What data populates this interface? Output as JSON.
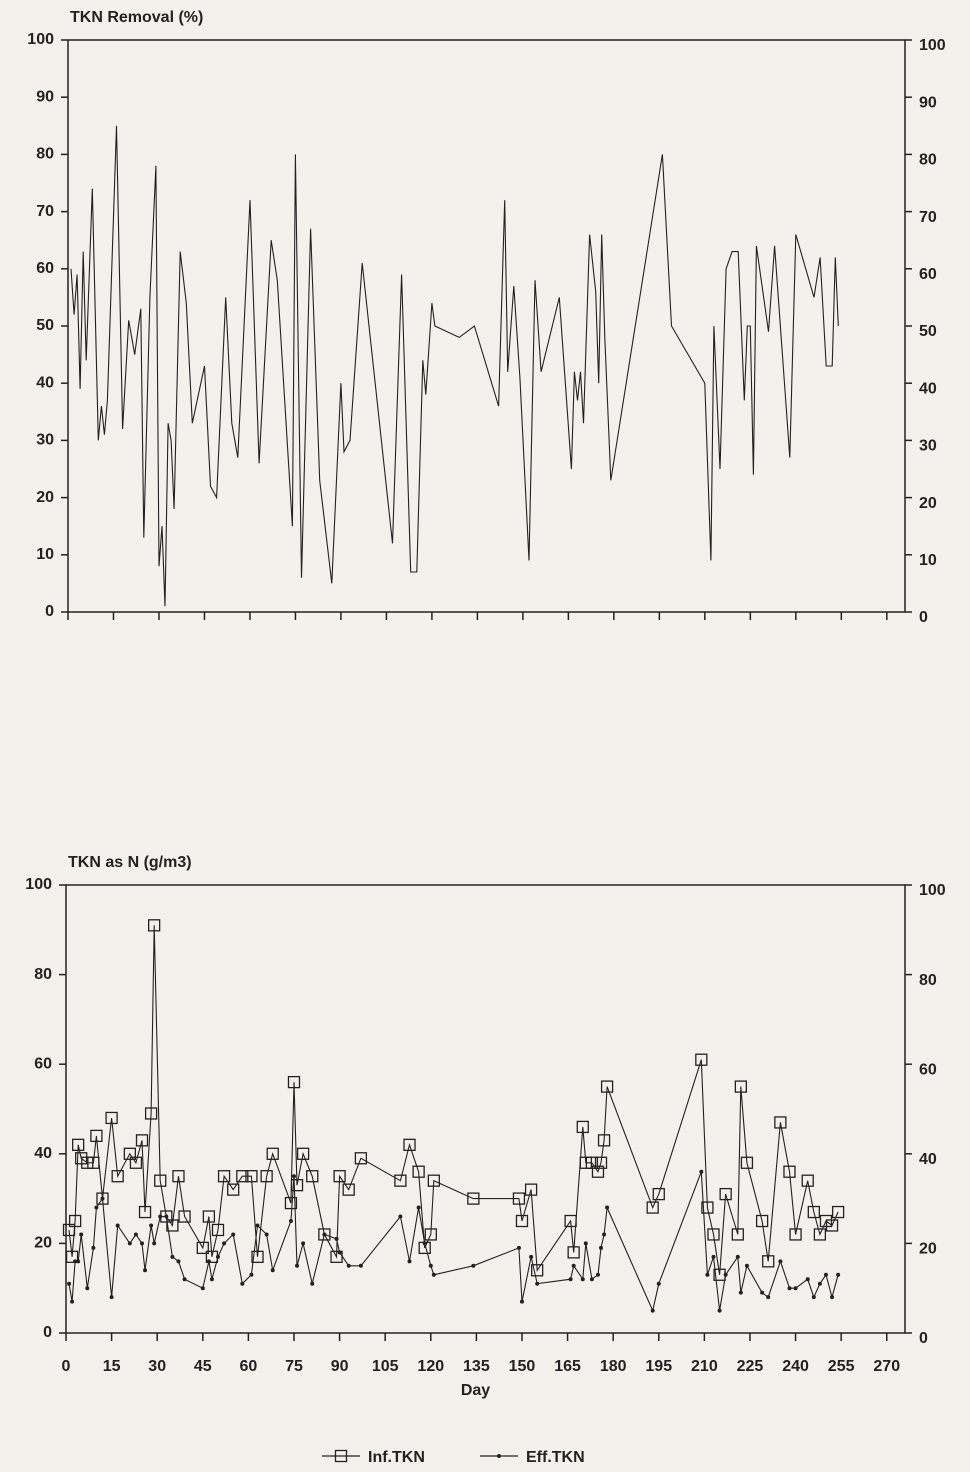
{
  "chart_data": [
    {
      "type": "line",
      "title": "TKN Removal (%)",
      "x": [
        1,
        2,
        3,
        4,
        5,
        6,
        8,
        10,
        11,
        12,
        13,
        16,
        18,
        20,
        22,
        24,
        25,
        27,
        29,
        30,
        31,
        32,
        33,
        34,
        35,
        37,
        39,
        41,
        45,
        47,
        49,
        52,
        54,
        56,
        60,
        63,
        67,
        69,
        74,
        75,
        77,
        80,
        83,
        87,
        90,
        91,
        93,
        97,
        107,
        110,
        113,
        115,
        117,
        118,
        120,
        121,
        129,
        134,
        142,
        144,
        145,
        147,
        149,
        152,
        154,
        156,
        162,
        166,
        167,
        168,
        169,
        170,
        172,
        174,
        175,
        176,
        177,
        179,
        196,
        199,
        210,
        212,
        213,
        215,
        217,
        219,
        221,
        223,
        224,
        225,
        226,
        227,
        231,
        233,
        238,
        240,
        246,
        248,
        250,
        252,
        253,
        254
      ],
      "values": [
        60,
        52,
        59,
        39,
        63,
        44,
        74,
        30,
        36,
        31,
        37,
        85,
        32,
        51,
        45,
        53,
        13,
        55,
        78,
        8,
        15,
        1,
        33,
        30,
        18,
        63,
        54,
        33,
        43,
        22,
        20,
        55,
        33,
        27,
        72,
        26,
        65,
        58,
        15,
        80,
        6,
        67,
        23,
        5,
        40,
        28,
        30,
        61,
        12,
        59,
        7,
        7,
        44,
        38,
        54,
        50,
        48,
        50,
        36,
        72,
        42,
        57,
        41,
        9,
        58,
        42,
        55,
        25,
        42,
        37,
        42,
        33,
        66,
        56,
        40,
        66,
        48,
        23,
        80,
        50,
        40,
        9,
        50,
        25,
        60,
        63,
        63,
        37,
        50,
        50,
        24,
        64,
        49,
        64,
        27,
        66,
        55,
        62,
        43,
        43,
        62,
        50
      ],
      "color": "#222222",
      "xlim": [
        0,
        276
      ],
      "xticks": [
        0,
        15,
        30,
        45,
        60,
        75,
        90,
        105,
        120,
        135,
        150,
        165,
        180,
        195,
        210,
        225,
        240,
        255,
        270
      ],
      "show_xtick_labels": false,
      "ylim": [
        0,
        100
      ],
      "yticks": [
        0,
        10,
        20,
        30,
        40,
        50,
        60,
        70,
        80,
        90,
        100
      ],
      "y2lim": [
        0,
        100
      ],
      "y2ticks": [
        0,
        10,
        20,
        30,
        40,
        50,
        60,
        70,
        80,
        90,
        100
      ]
    },
    {
      "type": "line",
      "title": "TKN as N (g/m3)",
      "xlabel": "Day",
      "x": [
        1,
        2,
        3,
        4,
        5,
        7,
        9,
        10,
        12,
        15,
        17,
        21,
        23,
        25,
        26,
        28,
        29,
        31,
        33,
        35,
        37,
        39,
        45,
        47,
        48,
        50,
        52,
        55,
        58,
        61,
        63,
        66,
        68,
        74,
        75,
        76,
        78,
        81,
        85,
        89,
        90,
        93,
        97,
        110,
        113,
        116,
        118,
        120,
        121,
        134,
        149,
        150,
        153,
        155,
        166,
        167,
        170,
        171,
        173,
        175,
        176,
        177,
        178,
        193,
        195,
        209,
        211,
        213,
        215,
        217,
        221,
        222,
        224,
        229,
        231,
        235,
        238,
        240,
        244,
        246,
        248,
        250,
        252,
        254
      ],
      "series": [
        {
          "name": "Inf.TKN",
          "color": "#222222",
          "marker": "square",
          "values": [
            23,
            17,
            25,
            42,
            39,
            38,
            38,
            44,
            30,
            48,
            35,
            40,
            38,
            43,
            27,
            49,
            91,
            34,
            26,
            24,
            35,
            26,
            19,
            26,
            17,
            23,
            35,
            32,
            35,
            35,
            17,
            35,
            40,
            29,
            56,
            33,
            40,
            35,
            22,
            17,
            35,
            32,
            39,
            34,
            42,
            36,
            19,
            22,
            34,
            30,
            30,
            25,
            32,
            14,
            25,
            18,
            46,
            38,
            38,
            36,
            38,
            43,
            55,
            28,
            31,
            61,
            28,
            22,
            13,
            31,
            22,
            55,
            38,
            25,
            16,
            47,
            36,
            22,
            34,
            27,
            22,
            25,
            24,
            27
          ]
        },
        {
          "name": "Eff.TKN",
          "color": "#222222",
          "marker": "dot",
          "values": [
            11,
            7,
            16,
            16,
            22,
            10,
            19,
            28,
            30,
            8,
            24,
            20,
            22,
            20,
            14,
            24,
            20,
            26,
            26,
            17,
            16,
            12,
            10,
            16,
            12,
            17,
            20,
            22,
            11,
            13,
            24,
            22,
            14,
            25,
            35,
            15,
            20,
            11,
            22,
            21,
            18,
            15,
            15,
            26,
            16,
            28,
            20,
            15,
            13,
            15,
            19,
            7,
            17,
            11,
            12,
            15,
            12,
            20,
            12,
            13,
            19,
            22,
            28,
            5,
            11,
            36,
            13,
            17,
            5,
            13,
            17,
            9,
            15,
            9,
            8,
            16,
            10,
            10,
            12,
            8,
            11,
            13,
            8,
            13
          ]
        }
      ],
      "legend": "bottom",
      "xlim": [
        0,
        276
      ],
      "xticks": [
        0,
        15,
        30,
        45,
        60,
        75,
        90,
        105,
        120,
        135,
        150,
        165,
        180,
        195,
        210,
        225,
        240,
        255,
        270
      ],
      "show_xtick_labels": true,
      "ylim": [
        0,
        100
      ],
      "yticks": [
        0,
        20,
        40,
        60,
        80,
        100
      ],
      "y2lim": [
        0,
        100
      ],
      "y2ticks": [
        0,
        20,
        40,
        60,
        80,
        100
      ]
    }
  ]
}
